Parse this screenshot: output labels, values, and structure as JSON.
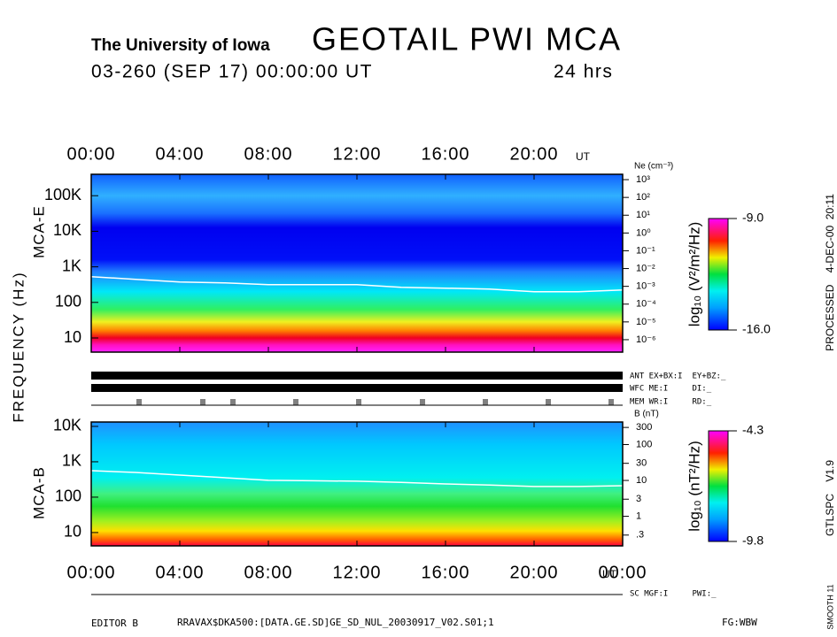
{
  "header": {
    "institution": "The University of Iowa",
    "title": "GEOTAIL PWI MCA",
    "date": "03-260 (SEP 17) 00:00:00 UT",
    "span": "24 hrs"
  },
  "side_labels": {
    "frequency": "FREQUENCY (Hz)",
    "processed": "PROCESSED    4-DEC-00  20:11",
    "version": "GTLSPC    V1.9",
    "smooth": "SMOOTH 11"
  },
  "footer": {
    "editor": "EDITOR B",
    "file": "RRAVAX$DKA500:[DATA.GE.SD]GE_SD_NUL_20030917_V02.S01;1",
    "fg": "FG:WBW"
  },
  "chart_data": [
    {
      "type": "spectrogram",
      "ylabel": "MCA-E",
      "log_y": true,
      "x_unit": "UT",
      "xlim": [
        0,
        24
      ],
      "xticks": [
        {
          "value": 0,
          "label": "00:00"
        },
        {
          "value": 4,
          "label": "04:00"
        },
        {
          "value": 8,
          "label": "08:00"
        },
        {
          "value": 12,
          "label": "12:00"
        },
        {
          "value": 16,
          "label": "16:00"
        },
        {
          "value": 20,
          "label": "20:00"
        }
      ],
      "ylim": [
        4,
        400000
      ],
      "yticks": [
        {
          "value": 100000,
          "label": "100K"
        },
        {
          "value": 10000,
          "label": "10K"
        },
        {
          "value": 1000,
          "label": "1K"
        },
        100,
        10
      ],
      "y2label": "Ne (cm⁻³)",
      "y2lim": [
        2e-07,
        2000
      ],
      "y2ticks": [
        {
          "value": 1000,
          "label": "10³"
        },
        {
          "value": 100,
          "label": "10²"
        },
        {
          "value": 10,
          "label": "10¹"
        },
        {
          "value": 1,
          "label": "10⁰"
        },
        {
          "value": 0.1,
          "label": "10⁻¹"
        },
        {
          "value": 0.01,
          "label": "10⁻²"
        },
        {
          "value": 0.001,
          "label": "10⁻³"
        },
        {
          "value": 0.0001,
          "label": "10⁻⁴"
        },
        {
          "value": 1e-05,
          "label": "10⁻⁵"
        },
        {
          "value": 1e-06,
          "label": "10⁻⁶"
        }
      ],
      "zlabel": "log₁₀ (V²/m²/Hz)",
      "zlim": [
        -16,
        -9
      ],
      "zticks": [
        {
          "value": -16,
          "label": "-16.0"
        },
        {
          "value": -9,
          "label": "-9.0"
        }
      ],
      "x": [
        0,
        2,
        4,
        6,
        8,
        10,
        12,
        14,
        16,
        18,
        20,
        22,
        24
      ],
      "series": [
        {
          "color": "#ffffff",
          "values": [
            531,
            447,
            376,
            355,
            316,
            316,
            316,
            266,
            251,
            237,
            200,
            200,
            224
          ]
        }
      ],
      "status": [
        "ANT EX+BX:I  EY+BZ:_",
        "WFC ME:I     DI:_",
        "MEM WR:I     RD:_"
      ]
    },
    {
      "type": "spectrogram",
      "ylabel": "MCA-B",
      "log_y": true,
      "x_unit": "UT",
      "xlim": [
        0,
        24
      ],
      "xticks": [
        {
          "value": 0,
          "label": "00:00"
        },
        {
          "value": 4,
          "label": "04:00"
        },
        {
          "value": 8,
          "label": "08:00"
        },
        {
          "value": 12,
          "label": "12:00"
        },
        {
          "value": 16,
          "label": "16:00"
        },
        {
          "value": 20,
          "label": "20:00"
        },
        {
          "value": 24,
          "label": "00:00"
        }
      ],
      "ylim": [
        4.2,
        13300
      ],
      "yticks": [
        {
          "value": 10000,
          "label": "10K"
        },
        {
          "value": 1000,
          "label": "1K"
        },
        100,
        10
      ],
      "y2label": "B (nT)",
      "y2lim": [
        0.15,
        425
      ],
      "y2ticks": [
        300,
        100,
        30,
        10,
        3,
        1,
        {
          "value": 0.3,
          "label": ".3"
        }
      ],
      "zlabel": "log₁₀ (nT²/Hz)",
      "zlim": [
        -9.8,
        -4.3
      ],
      "zticks": [
        -9.8,
        -4.3
      ],
      "x": [
        0,
        2,
        4,
        6,
        8,
        10,
        12,
        14,
        16,
        18,
        20,
        22,
        24
      ],
      "series": [
        {
          "color": "#ffffff",
          "values": [
            562,
            500,
            420,
            355,
            299,
            290,
            282,
            260,
            237,
            220,
            200,
            200,
            211
          ]
        }
      ],
      "status": [
        "SC MGF:I     PWI:_"
      ]
    }
  ]
}
